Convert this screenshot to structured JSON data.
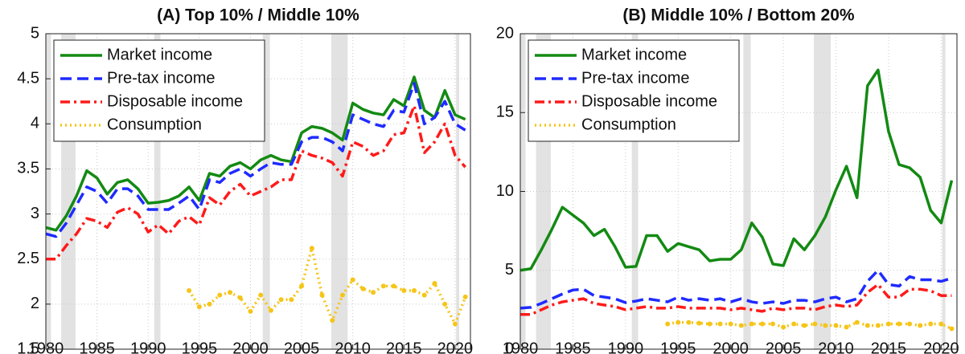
{
  "chart_data": [
    {
      "type": "line",
      "title": "(A) Top 10% / Middle 10%",
      "x": [
        1980,
        1981,
        1982,
        1983,
        1984,
        1985,
        1986,
        1987,
        1988,
        1989,
        1990,
        1991,
        1992,
        1993,
        1994,
        1995,
        1996,
        1997,
        1998,
        1999,
        2000,
        2001,
        2002,
        2003,
        2004,
        2005,
        2006,
        2007,
        2008,
        2009,
        2010,
        2011,
        2012,
        2013,
        2014,
        2015,
        2016,
        2017,
        2018,
        2019,
        2020,
        2021
      ],
      "xlim": [
        1980,
        2021.5
      ],
      "xticks": [
        1980,
        1985,
        1990,
        1995,
        2000,
        2005,
        2010,
        2015,
        2020
      ],
      "ylim": [
        1.5,
        5
      ],
      "yticks": [
        1.5,
        2,
        2.5,
        3,
        3.5,
        4,
        4.5,
        5
      ],
      "grid": true,
      "legend": "upper left",
      "shaded_ranges": [
        [
          1980,
          1980.5
        ],
        [
          1981.5,
          1982.9
        ],
        [
          1990.6,
          1991.2
        ],
        [
          2001.2,
          2001.9
        ],
        [
          2007.9,
          2009.5
        ],
        [
          2020.1,
          2020.4
        ]
      ],
      "shade_color": "#e2e2e2",
      "series": [
        {
          "name": "Market income",
          "color": "#138a13",
          "dash": "solid",
          "values": [
            2.85,
            2.82,
            2.98,
            3.2,
            3.48,
            3.4,
            3.22,
            3.35,
            3.38,
            3.28,
            3.12,
            3.13,
            3.15,
            3.2,
            3.3,
            3.15,
            3.45,
            3.42,
            3.53,
            3.57,
            3.5,
            3.6,
            3.65,
            3.6,
            3.58,
            3.9,
            3.97,
            3.95,
            3.9,
            3.82,
            4.23,
            4.16,
            4.12,
            4.1,
            4.27,
            4.2,
            4.52,
            4.15,
            4.07,
            4.37,
            4.1,
            4.05
          ]
        },
        {
          "name": "Pre-tax income",
          "color": "#1f2bff",
          "dash": "dashed",
          "values": [
            2.78,
            2.75,
            2.9,
            3.1,
            3.3,
            3.25,
            3.12,
            3.28,
            3.28,
            3.2,
            3.05,
            3.05,
            3.05,
            3.12,
            3.2,
            3.05,
            3.38,
            3.35,
            3.45,
            3.5,
            3.42,
            3.5,
            3.57,
            3.55,
            3.55,
            3.8,
            3.85,
            3.85,
            3.8,
            3.7,
            4.1,
            4.05,
            4.0,
            3.97,
            4.15,
            4.13,
            4.45,
            4.0,
            4.07,
            4.25,
            4.0,
            3.93
          ]
        },
        {
          "name": "Disposable income",
          "color": "#ff1a1a",
          "dash": "dashdot",
          "values": [
            2.5,
            2.5,
            2.65,
            2.78,
            2.95,
            2.92,
            2.85,
            3.02,
            3.07,
            3.0,
            2.8,
            2.88,
            2.78,
            2.92,
            2.97,
            2.88,
            3.18,
            3.1,
            3.25,
            3.33,
            3.2,
            3.25,
            3.3,
            3.38,
            3.38,
            3.7,
            3.65,
            3.62,
            3.57,
            3.42,
            3.8,
            3.75,
            3.65,
            3.7,
            3.88,
            3.9,
            4.2,
            3.68,
            3.8,
            4.0,
            3.65,
            3.52
          ]
        },
        {
          "name": "Consumption",
          "color": "#f5c518",
          "dash": "dotted",
          "values": [
            null,
            null,
            null,
            null,
            null,
            null,
            null,
            null,
            null,
            null,
            null,
            null,
            null,
            null,
            2.15,
            1.97,
            2.0,
            2.1,
            2.13,
            2.07,
            1.92,
            2.1,
            1.93,
            2.05,
            2.05,
            2.2,
            2.62,
            2.1,
            1.82,
            2.1,
            2.27,
            2.17,
            2.13,
            2.2,
            2.2,
            2.15,
            2.15,
            2.1,
            2.23,
            2.0,
            1.78,
            2.08
          ]
        }
      ]
    },
    {
      "type": "line",
      "title": "(B) Middle 10% / Bottom 20%",
      "x": [
        1980,
        1981,
        1982,
        1983,
        1984,
        1985,
        1986,
        1987,
        1988,
        1989,
        1990,
        1991,
        1992,
        1993,
        1994,
        1995,
        1996,
        1997,
        1998,
        1999,
        2000,
        2001,
        2002,
        2003,
        2004,
        2005,
        2006,
        2007,
        2008,
        2009,
        2010,
        2011,
        2012,
        2013,
        2014,
        2015,
        2016,
        2017,
        2018,
        2019,
        2020,
        2021
      ],
      "xlim": [
        1980,
        2021.5
      ],
      "xticks": [
        1980,
        1985,
        1990,
        1995,
        2000,
        2005,
        2010,
        2015,
        2020
      ],
      "ylim": [
        0,
        20
      ],
      "yticks": [
        0,
        5,
        10,
        15,
        20
      ],
      "grid": true,
      "legend": "upper left",
      "shaded_ranges": [
        [
          1980,
          1980.5
        ],
        [
          1981.5,
          1982.9
        ],
        [
          1990.6,
          1991.2
        ],
        [
          2001.2,
          2001.9
        ],
        [
          2007.9,
          2009.5
        ],
        [
          2020.1,
          2020.4
        ]
      ],
      "shade_color": "#e2e2e2",
      "series": [
        {
          "name": "Market income",
          "color": "#138a13",
          "dash": "solid",
          "values": [
            5.0,
            5.1,
            6.3,
            7.6,
            9.0,
            8.5,
            8.0,
            7.2,
            7.6,
            6.5,
            5.2,
            5.25,
            7.2,
            7.2,
            6.2,
            6.7,
            6.5,
            6.3,
            5.6,
            5.7,
            5.7,
            6.3,
            8.0,
            7.1,
            5.4,
            5.3,
            7.0,
            6.3,
            7.2,
            8.4,
            10.1,
            11.6,
            9.6,
            16.7,
            17.7,
            13.8,
            11.7,
            11.5,
            10.9,
            8.8,
            8.0,
            10.7
          ]
        },
        {
          "name": "Pre-tax income",
          "color": "#1f2bff",
          "dash": "dashed",
          "values": [
            2.6,
            2.65,
            2.9,
            3.2,
            3.5,
            3.75,
            3.8,
            3.4,
            3.3,
            3.2,
            2.95,
            3.05,
            3.2,
            3.1,
            3.0,
            3.3,
            3.1,
            3.2,
            3.1,
            3.2,
            3.0,
            3.2,
            3.0,
            2.9,
            3.0,
            2.9,
            3.1,
            3.1,
            3.0,
            3.2,
            3.3,
            3.0,
            3.2,
            4.3,
            5.0,
            4.1,
            4.0,
            4.6,
            4.4,
            4.4,
            4.3,
            4.5
          ]
        },
        {
          "name": "Disposable income",
          "color": "#ff1a1a",
          "dash": "dashdot",
          "values": [
            2.2,
            2.2,
            2.5,
            2.8,
            3.0,
            3.1,
            3.2,
            2.9,
            2.8,
            2.7,
            2.5,
            2.6,
            2.7,
            2.6,
            2.6,
            2.7,
            2.6,
            2.6,
            2.6,
            2.6,
            2.5,
            2.6,
            2.5,
            2.4,
            2.6,
            2.5,
            2.6,
            2.6,
            2.5,
            2.7,
            2.8,
            2.7,
            2.8,
            3.6,
            4.1,
            3.3,
            3.3,
            3.8,
            3.8,
            3.7,
            3.4,
            3.4
          ]
        },
        {
          "name": "Consumption",
          "color": "#f5c518",
          "dash": "dotted",
          "values": [
            null,
            null,
            null,
            null,
            null,
            null,
            null,
            null,
            null,
            null,
            null,
            null,
            null,
            null,
            1.6,
            1.7,
            1.7,
            1.65,
            1.6,
            1.6,
            1.6,
            1.5,
            1.6,
            1.6,
            1.6,
            1.4,
            1.6,
            1.5,
            1.6,
            1.5,
            1.5,
            1.4,
            1.7,
            1.5,
            1.5,
            1.6,
            1.6,
            1.6,
            1.5,
            1.6,
            1.6,
            1.3
          ]
        }
      ]
    }
  ]
}
